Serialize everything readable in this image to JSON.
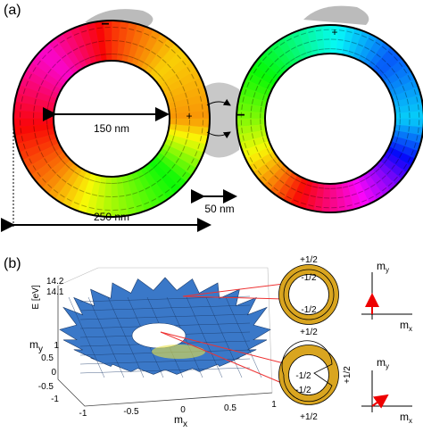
{
  "panel_a": {
    "label": "(a)",
    "left_ring": {
      "top_sign": "−",
      "right_sign": "+"
    },
    "right_ring": {
      "top_sign": "+",
      "left_sign": "−"
    },
    "dimensions": {
      "inner": "150 nm",
      "outer": "250 nm",
      "gap": "50 nm"
    }
  },
  "panel_b": {
    "label": "(b)",
    "surface": {
      "z_label": "E [eV]",
      "z_ticks": [
        "14.2",
        "14.1"
      ],
      "y_label": {
        "m": "m",
        "sub": "y"
      },
      "x_label": {
        "m": "m",
        "sub": "x"
      },
      "x_ticks": [
        "-1",
        "-0.5",
        "0",
        "0.5",
        "1"
      ],
      "y_ticks": [
        "1",
        "0.5",
        "0",
        "-0.5",
        "-1"
      ]
    },
    "ring_top": {
      "outer_top": "+1/2",
      "inner_top": "-1/2",
      "inner_bottom": "-1/2",
      "outer_bottom": "+1/2"
    },
    "ring_bottom": {
      "outer_right": "+1/2",
      "inner_top": "-1/2",
      "inner_bottom": "-1/2",
      "outer_bottom": "+1/2"
    },
    "vector_top": {
      "y_label": {
        "m": "m",
        "sub": "y"
      },
      "x_label": {
        "m": "m",
        "sub": "x"
      }
    },
    "vector_bottom": {
      "y_label": {
        "m": "m",
        "sub": "y"
      },
      "x_label": {
        "m": "m",
        "sub": "x"
      }
    }
  }
}
